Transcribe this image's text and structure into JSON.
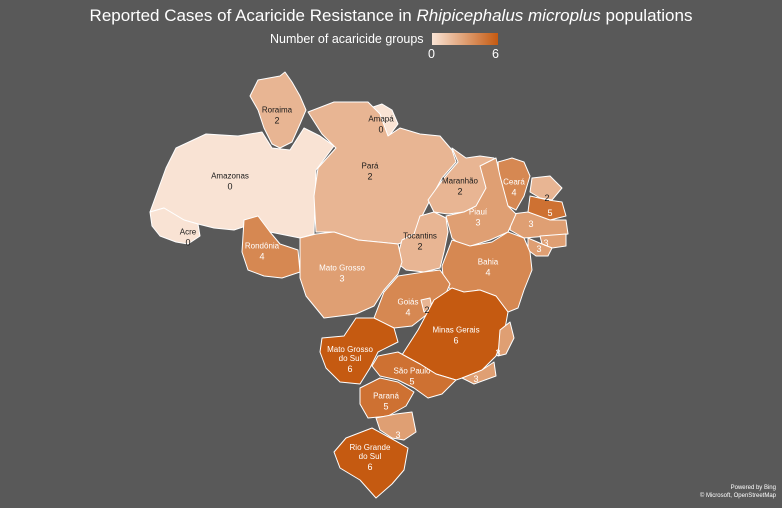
{
  "title": {
    "prefix": "Reported Cases of Acaricide Resistance in ",
    "species": "Rhipicephalus microplus",
    "suffix": " populations"
  },
  "legend": {
    "title": "Number of acaricide groups",
    "min": "0",
    "max": "6",
    "range": [
      0,
      6
    ],
    "color_low": "#f9e3d4",
    "color_high": "#c55a11"
  },
  "credit": {
    "line1": "Powered by Bing",
    "line2": "© Microsoft, OpenStreetMap"
  },
  "regions": [
    {
      "id": "roraima",
      "label": [
        "Roraima"
      ],
      "value": 2
    },
    {
      "id": "amapa",
      "label": [
        "Amapá"
      ],
      "value": 0
    },
    {
      "id": "amazonas",
      "label": [
        "Amazonas"
      ],
      "value": 0
    },
    {
      "id": "para",
      "label": [
        "Pará"
      ],
      "value": 2
    },
    {
      "id": "maranhao",
      "label": [
        "Maranhão"
      ],
      "value": 2
    },
    {
      "id": "ceara",
      "label": [
        "Ceará"
      ],
      "value": 4
    },
    {
      "id": "rn",
      "label": [],
      "value": 2
    },
    {
      "id": "pb",
      "label": [],
      "value": 5
    },
    {
      "id": "pe",
      "label": [],
      "value": 3
    },
    {
      "id": "al",
      "label": [],
      "value": 3
    },
    {
      "id": "se",
      "label": [],
      "value": 3
    },
    {
      "id": "piaui",
      "label": [
        "Piauí"
      ],
      "value": 3
    },
    {
      "id": "acre",
      "label": [
        "Acre"
      ],
      "value": 0
    },
    {
      "id": "rondonia",
      "label": [
        "Rondônia"
      ],
      "value": 4
    },
    {
      "id": "tocantins",
      "label": [
        "Tocantins"
      ],
      "value": 2
    },
    {
      "id": "bahia",
      "label": [
        "Bahia"
      ],
      "value": 4
    },
    {
      "id": "mato-grosso",
      "label": [
        "Mato Grosso"
      ],
      "value": 3
    },
    {
      "id": "goias",
      "label": [
        "Goiás"
      ],
      "value": 4
    },
    {
      "id": "df",
      "label": [],
      "value": 2
    },
    {
      "id": "minas-gerais",
      "label": [
        "Minas Gerais"
      ],
      "value": 6
    },
    {
      "id": "es",
      "label": [],
      "value": 3
    },
    {
      "id": "rj",
      "label": [],
      "value": 3
    },
    {
      "id": "mato-grosso-do-sul",
      "label": [
        "Mato Grosso",
        "do Sul"
      ],
      "value": 6
    },
    {
      "id": "sao-paulo",
      "label": [
        "São Paulo"
      ],
      "value": 5
    },
    {
      "id": "parana",
      "label": [
        "Paraná"
      ],
      "value": 5
    },
    {
      "id": "sc",
      "label": [],
      "value": 3
    },
    {
      "id": "rio-grande-do-sul",
      "label": [
        "Rio Grande",
        "do Sul"
      ],
      "value": 6
    }
  ]
}
